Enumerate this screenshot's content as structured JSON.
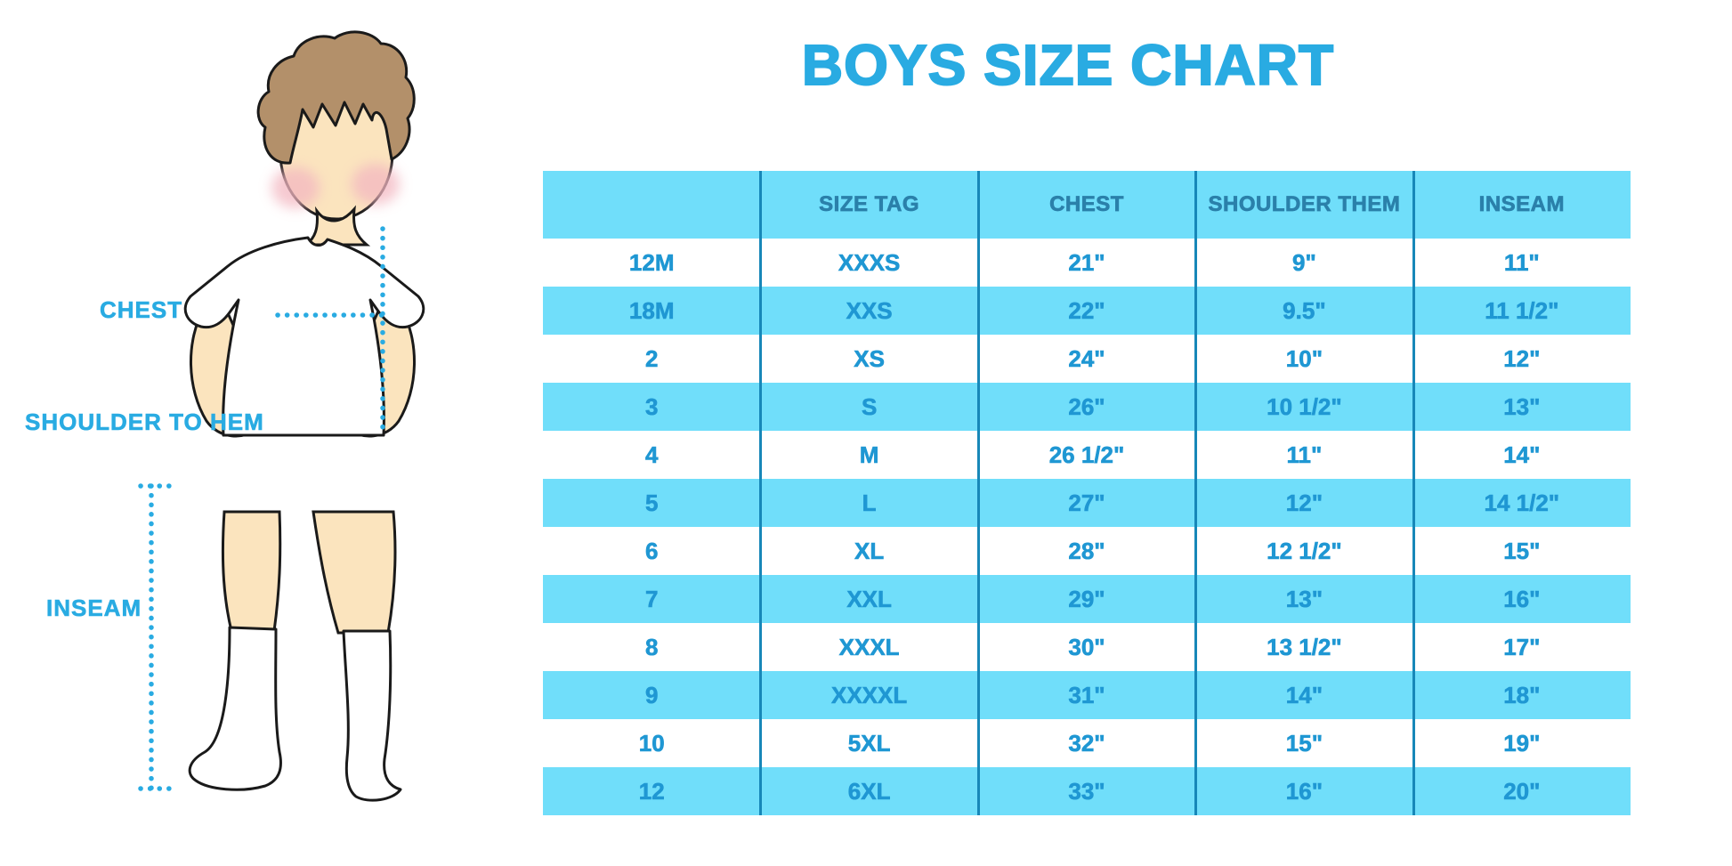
{
  "title": "BOYS SIZE CHART",
  "illustration": {
    "subject": "boy-figure-front-view",
    "labels": {
      "chest": "CHEST",
      "shoulder_to_hem": "SHOULDER TO HEM",
      "inseam": "INSEAM"
    }
  },
  "table": {
    "columns": [
      "",
      "SIZE TAG",
      "CHEST",
      "SHOULDER THEM",
      "INSEAM"
    ],
    "rows": [
      {
        "size": "12M",
        "size_tag": "XXXS",
        "chest": "21\"",
        "shoulder_them": "9\"",
        "inseam": "11\""
      },
      {
        "size": "18M",
        "size_tag": "XXS",
        "chest": "22\"",
        "shoulder_them": "9.5\"",
        "inseam": "11 1/2\""
      },
      {
        "size": "2",
        "size_tag": "XS",
        "chest": "24\"",
        "shoulder_them": "10\"",
        "inseam": "12\""
      },
      {
        "size": "3",
        "size_tag": "S",
        "chest": "26\"",
        "shoulder_them": "10 1/2\"",
        "inseam": "13\""
      },
      {
        "size": "4",
        "size_tag": "M",
        "chest": "26 1/2\"",
        "shoulder_them": "11\"",
        "inseam": "14\""
      },
      {
        "size": "5",
        "size_tag": "L",
        "chest": "27\"",
        "shoulder_them": "12\"",
        "inseam": "14 1/2\""
      },
      {
        "size": "6",
        "size_tag": "XL",
        "chest": "28\"",
        "shoulder_them": "12 1/2\"",
        "inseam": "15\""
      },
      {
        "size": "7",
        "size_tag": "XXL",
        "chest": "29\"",
        "shoulder_them": "13\"",
        "inseam": "16\""
      },
      {
        "size": "8",
        "size_tag": "XXXL",
        "chest": "30\"",
        "shoulder_them": "13 1/2\"",
        "inseam": "17\""
      },
      {
        "size": "9",
        "size_tag": "XXXXL",
        "chest": "31\"",
        "shoulder_them": "14\"",
        "inseam": "18\""
      },
      {
        "size": "10",
        "size_tag": "5XL",
        "chest": "32\"",
        "shoulder_them": "15\"",
        "inseam": "19\""
      },
      {
        "size": "12",
        "size_tag": "6XL",
        "chest": "33\"",
        "shoulder_them": "16\"",
        "inseam": "20\""
      }
    ]
  },
  "chart_data": {
    "type": "table",
    "title": "BOYS SIZE CHART",
    "columns": [
      "",
      "SIZE TAG",
      "CHEST",
      "SHOULDER THEM",
      "INSEAM"
    ],
    "rows": [
      [
        "12M",
        "XXXS",
        "21\"",
        "9\"",
        "11\""
      ],
      [
        "18M",
        "XXS",
        "22\"",
        "9.5\"",
        "11 1/2\""
      ],
      [
        "2",
        "XS",
        "24\"",
        "10\"",
        "12\""
      ],
      [
        "3",
        "S",
        "26\"",
        "10 1/2\"",
        "13\""
      ],
      [
        "4",
        "M",
        "26 1/2\"",
        "11\"",
        "14\""
      ],
      [
        "5",
        "L",
        "27\"",
        "12\"",
        "14 1/2\""
      ],
      [
        "6",
        "XL",
        "28\"",
        "12 1/2\"",
        "15\""
      ],
      [
        "7",
        "XXL",
        "29\"",
        "13\"",
        "16\""
      ],
      [
        "8",
        "XXXL",
        "30\"",
        "13 1/2\"",
        "17\""
      ],
      [
        "9",
        "XXXXL",
        "31\"",
        "14\"",
        "18\""
      ],
      [
        "10",
        "5XL",
        "32\"",
        "15\"",
        "19\""
      ],
      [
        "12",
        "6XL",
        "33\"",
        "16\"",
        "20\""
      ]
    ],
    "layout": {
      "row_striping": true,
      "stripe_color": "#70defa",
      "grid_lines": "vertical-only"
    }
  },
  "colors": {
    "accent_blue": "#29abe2",
    "stripe_cyan": "#70defa",
    "divider_blue": "#1787b8",
    "header_text": "#2a80aa",
    "cell_text": "#1f97d3",
    "skin": "#fbe4be",
    "hair": "#b3906a",
    "blush": "#f3b7c1",
    "outline": "#1a1a1a"
  }
}
